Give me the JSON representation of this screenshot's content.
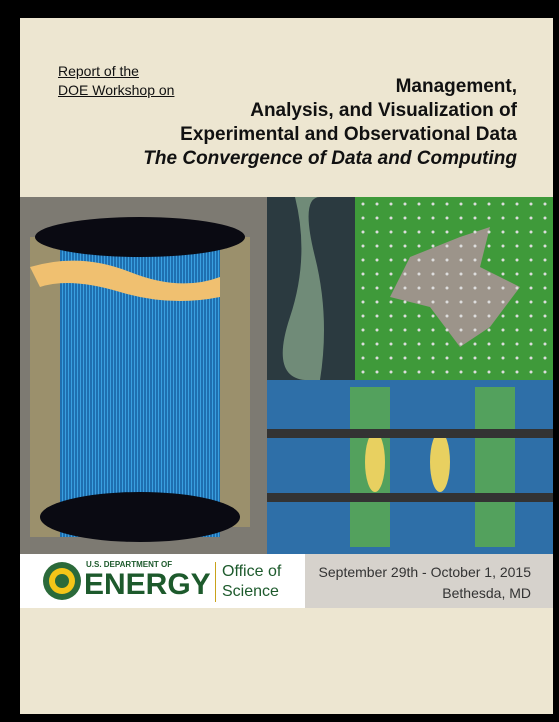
{
  "header": {
    "report_line1": "Report of the",
    "report_line2": "DOE Workshop on",
    "title_lines": [
      "Management,",
      "Analysis, and Visualization of",
      "Experimental and Observational Data"
    ],
    "subtitle": "The Convergence of Data and Computing"
  },
  "footer": {
    "department": "U.S. DEPARTMENT OF",
    "energy": "ENERGY",
    "office_line1": "Office of",
    "office_line2": "Science",
    "dates": "September 29th - October 1, 2015",
    "location": "Bethesda, MD"
  }
}
